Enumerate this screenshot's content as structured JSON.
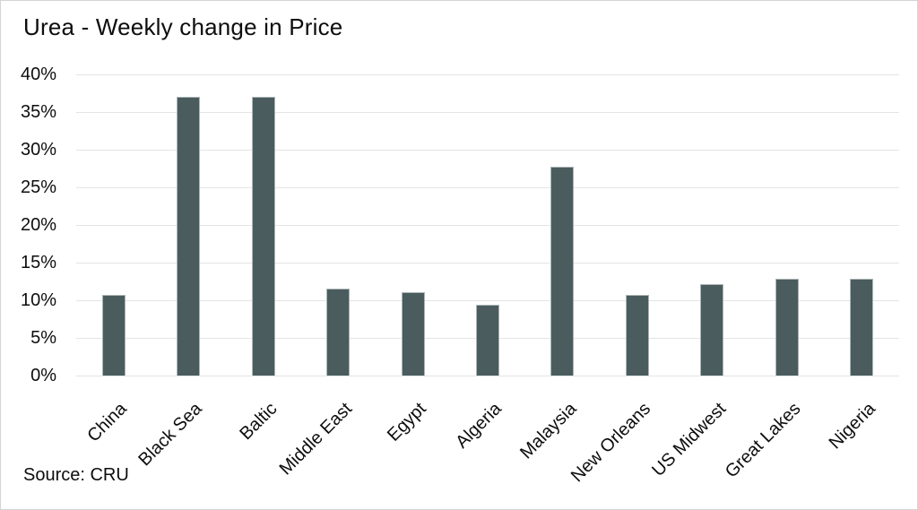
{
  "title": "Urea - Weekly change in Price",
  "source_note": "Source: CRU",
  "colors": {
    "bar_fill": "#4a5c5e",
    "bar_border": "rgba(255,255,255,0.55)",
    "gridline": "#e4e4e4",
    "frame_border": "#d4d4d4",
    "text": "#0d0d0d",
    "background": "#ffffff"
  },
  "chart_data": {
    "type": "bar",
    "title": "Urea - Weekly change in Price",
    "source": "Source: CRU",
    "categories": [
      "China",
      "Black Sea",
      "Baltic",
      "Middle East",
      "Egypt",
      "Algeria",
      "Malaysia",
      "New Orleans",
      "US Midwest",
      "Great Lakes",
      "Nigeria"
    ],
    "values": [
      10.7,
      37.0,
      37.0,
      11.6,
      11.1,
      9.4,
      27.7,
      10.7,
      12.1,
      12.9,
      12.8
    ],
    "xlabel": "",
    "ylabel": "",
    "ylim": [
      0,
      40
    ],
    "ytick_step": 5,
    "ytick_labels": [
      "0%",
      "5%",
      "10%",
      "15%",
      "20%",
      "25%",
      "30%",
      "35%",
      "40%"
    ],
    "xtick_rotation_deg": -45,
    "grid": "horizontal",
    "legend": "none"
  }
}
